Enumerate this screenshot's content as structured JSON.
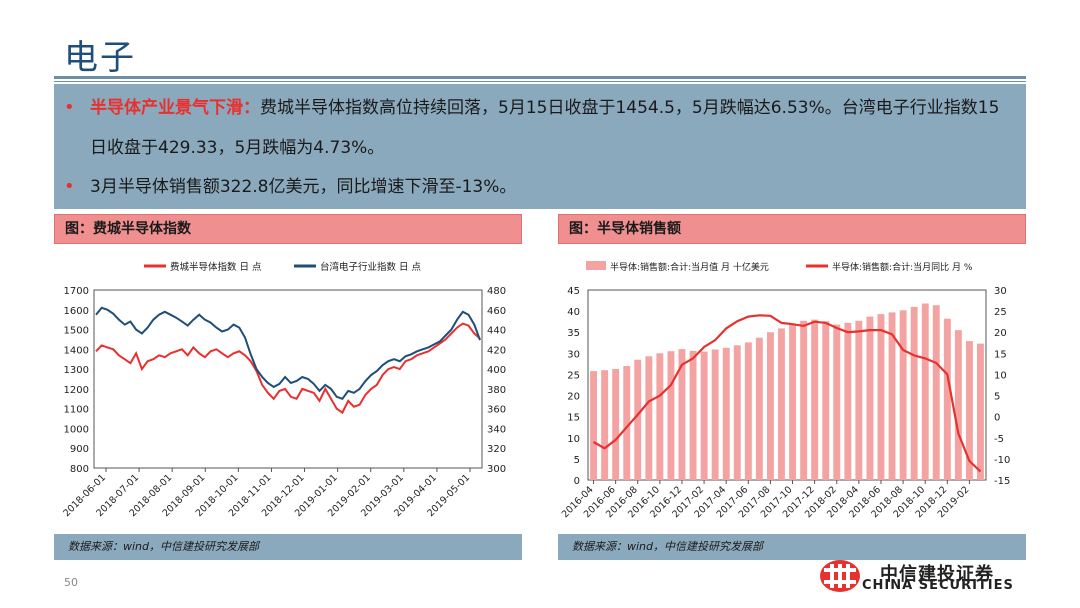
{
  "page": {
    "title": "电子",
    "page_number": "50"
  },
  "bullets": [
    {
      "highlight": "半导体产业景气下滑：",
      "text": "费城半导体指数高位持续回落，5月15日收盘于1454.5，5月跌幅达6.53%。台湾电子行业指数15日收盘于429.33，5月跌幅为4.73%。"
    },
    {
      "highlight": "",
      "text": "3月半导体销售额322.8亿美元，同比增速下滑至-13%。"
    }
  ],
  "charts": {
    "left": {
      "header": "图：费城半导体指数",
      "source": "数据来源：wind，中信建投研究发展部"
    },
    "right": {
      "header": "图：半导体销售额",
      "source": "数据来源：wind，中信建投研究发展部"
    }
  },
  "logo": {
    "cn": "中信建投证券",
    "en": "CHINA SECURITIES"
  },
  "colors": {
    "red": "#e8312f",
    "navy": "#1f4e79",
    "bar": "#f4a3a3",
    "panel": "#8aa9bd",
    "header": "#f08f8f"
  },
  "chart_data": [
    {
      "type": "line",
      "legend": [
        "费城半导体指数 日 点",
        "台湾电子行业指数 日 点"
      ],
      "x_tick_labels": [
        "2018-06-01",
        "2018-07-01",
        "2018-08-01",
        "2018-09-01",
        "2018-10-01",
        "2018-11-01",
        "2018-12-01",
        "2019-01-01",
        "2019-02-01",
        "2019-03-01",
        "2019-04-01",
        "2019-05-01"
      ],
      "y_left": {
        "ticks": [
          800,
          900,
          1000,
          1100,
          1200,
          1300,
          1400,
          1500,
          1600,
          1700
        ],
        "ylim": [
          800,
          1700
        ]
      },
      "y_right": {
        "ticks": [
          300,
          320,
          340,
          360,
          380,
          400,
          420,
          440,
          460,
          480
        ],
        "ylim": [
          300,
          480
        ]
      },
      "series": [
        {
          "name": "费城半导体指数 日 点",
          "color": "#e8312f",
          "axis": "left",
          "values": [
            1390,
            1420,
            1410,
            1400,
            1370,
            1350,
            1330,
            1380,
            1300,
            1340,
            1350,
            1370,
            1360,
            1380,
            1390,
            1400,
            1370,
            1410,
            1380,
            1360,
            1390,
            1400,
            1380,
            1360,
            1380,
            1390,
            1370,
            1340,
            1290,
            1220,
            1180,
            1150,
            1190,
            1200,
            1160,
            1150,
            1200,
            1190,
            1180,
            1140,
            1200,
            1150,
            1100,
            1080,
            1140,
            1110,
            1120,
            1170,
            1200,
            1220,
            1270,
            1300,
            1310,
            1300,
            1340,
            1350,
            1370,
            1380,
            1390,
            1410,
            1430,
            1450,
            1480,
            1510,
            1530,
            1520,
            1480,
            1454.5
          ]
        },
        {
          "name": "台湾电子行业指数 日 点",
          "color": "#1f4e79",
          "axis": "right",
          "values": [
            455,
            462,
            460,
            456,
            450,
            445,
            448,
            440,
            436,
            442,
            450,
            455,
            458,
            455,
            452,
            448,
            444,
            450,
            455,
            450,
            447,
            442,
            438,
            440,
            445,
            442,
            432,
            415,
            400,
            392,
            386,
            382,
            385,
            392,
            386,
            388,
            392,
            390,
            385,
            378,
            384,
            380,
            372,
            370,
            378,
            376,
            380,
            388,
            394,
            398,
            404,
            408,
            410,
            408,
            413,
            415,
            418,
            420,
            422,
            425,
            428,
            434,
            440,
            450,
            458,
            455,
            445,
            429.33
          ]
        }
      ]
    },
    {
      "type": "bar",
      "legend": [
        "半导体:销售额:合计:当月值 月 十亿美元",
        "半导体:销售额:合计:当月同比 月 %"
      ],
      "categories": [
        "2016-04",
        "2016-05",
        "2016-06",
        "2016-07",
        "2016-08",
        "2016-09",
        "2016-10",
        "2016-11",
        "2016-12",
        "2017-01",
        "2017-02",
        "2017-03",
        "2017-04",
        "2017-05",
        "2017-06",
        "2017-07",
        "2017-08",
        "2017-09",
        "2017-10",
        "2017-11",
        "2017-12",
        "2018-01",
        "2018-02",
        "2018-03",
        "2018-04",
        "2018-05",
        "2018-06",
        "2018-07",
        "2018-08",
        "2018-09",
        "2018-10",
        "2018-11",
        "2018-12",
        "2019-01",
        "2019-02",
        "2019-03"
      ],
      "x_tick_labels": [
        "2016-04",
        "2016-06",
        "2016-08",
        "2016-10",
        "2016-12",
        "2017-02",
        "2017-04",
        "2017-06",
        "2017-08",
        "2017-10",
        "2017-12",
        "2018-02",
        "2018-04",
        "2018-06",
        "2018-08",
        "2018-10",
        "2018-12",
        "2019-02"
      ],
      "y_left": {
        "ticks": [
          0,
          5,
          10,
          15,
          20,
          25,
          30,
          35,
          40,
          45
        ],
        "ylim": [
          0,
          45
        ]
      },
      "y_right": {
        "ticks": [
          -15,
          -10,
          -5,
          0,
          5,
          10,
          15,
          20,
          25,
          30
        ],
        "ylim": [
          -15,
          30
        ]
      },
      "series": [
        {
          "name": "半导体:销售额:合计:当月值 月 十亿美元",
          "type": "bar",
          "color": "#f4a3a3",
          "axis": "left",
          "values": [
            25.8,
            26.0,
            26.3,
            27.0,
            28.5,
            29.3,
            30.0,
            30.5,
            31.0,
            30.6,
            30.4,
            30.9,
            31.3,
            31.9,
            32.6,
            33.7,
            35.0,
            35.9,
            36.8,
            37.7,
            38.0,
            37.6,
            36.8,
            37.2,
            37.7,
            38.7,
            39.3,
            39.7,
            40.2,
            41.0,
            41.8,
            41.4,
            38.2,
            35.5,
            32.9,
            32.3
          ]
        },
        {
          "name": "半导体:销售额:合计:当月同比 月 %",
          "type": "line",
          "color": "#e8312f",
          "axis": "right",
          "values": [
            -6.0,
            -7.5,
            -5.5,
            -2.5,
            0.5,
            3.6,
            5.0,
            7.5,
            12.3,
            13.8,
            16.5,
            18.1,
            20.9,
            22.6,
            23.7,
            24.0,
            23.9,
            22.2,
            21.9,
            21.5,
            22.5,
            22.2,
            21.0,
            20.0,
            20.2,
            20.5,
            20.5,
            19.5,
            15.8,
            14.5,
            13.8,
            12.7,
            10.0,
            -4.0,
            -10.5,
            -13.0
          ]
        }
      ]
    }
  ]
}
